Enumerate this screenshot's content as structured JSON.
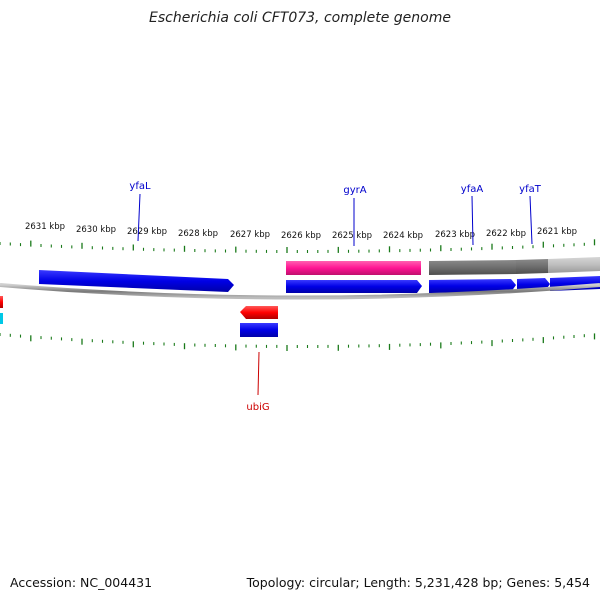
{
  "title": "Escherichia coli CFT073, complete genome",
  "footer": {
    "accession": "Accession: NC_004431",
    "summary": "Topology: circular; Length: 5,231,428 bp; Genes: 5,454"
  },
  "scale": {
    "unit": "kbp",
    "ticks": [
      "2631 kbp",
      "2630 kbp",
      "2629 kbp",
      "2628 kbp",
      "2627 kbp",
      "2626 kbp",
      "2625 kbp",
      "2624 kbp",
      "2623 kbp",
      "2622 kbp",
      "2621 kbp"
    ]
  },
  "gene_labels": [
    {
      "name": "yfaL",
      "color": "#0000cc"
    },
    {
      "name": "gyrA",
      "color": "#0000cc"
    },
    {
      "name": "yfaA",
      "color": "#0000cc"
    },
    {
      "name": "yfaT",
      "color": "#0000cc"
    },
    {
      "name": "ubiG",
      "color": "#cc0000"
    }
  ],
  "colors": {
    "forward_gene": "#0000e6",
    "reverse_gene": "#ff0000",
    "highlight_feature": "#ff1493",
    "dark_feature": "#6e6e6e",
    "light_feature": "#bdbdbd",
    "tick_marks": "#1a7a1a",
    "backbone": "#8c8c8c",
    "cyan_feature": "#00c8e6"
  }
}
